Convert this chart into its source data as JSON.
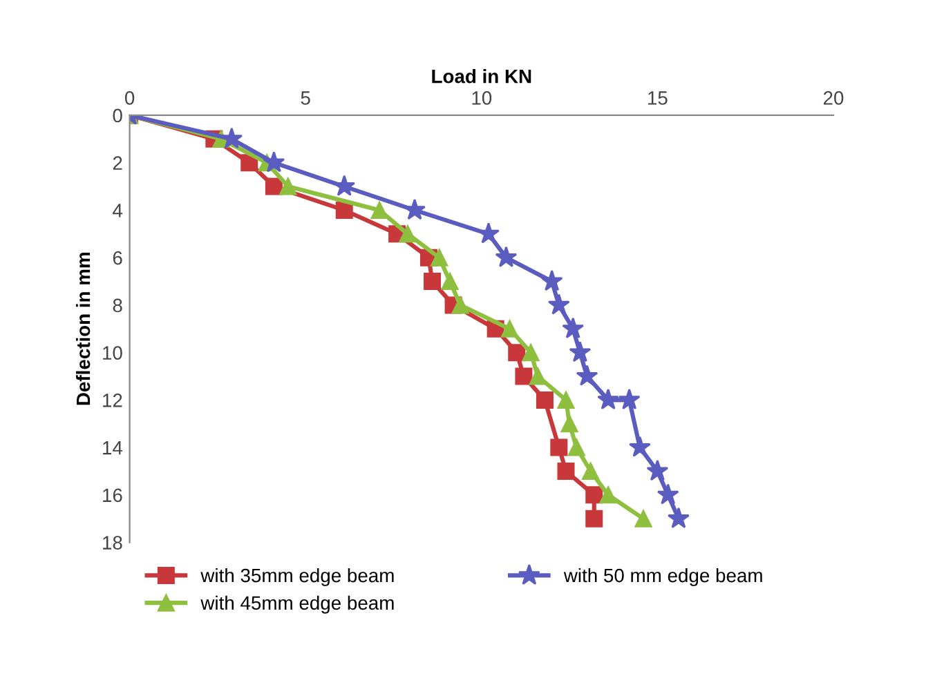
{
  "chart_data": {
    "type": "line",
    "xlabel": "Load in KN",
    "ylabel": "Deflection in mm",
    "xlim": [
      0,
      20
    ],
    "xticks": [
      0,
      5,
      10,
      15,
      20
    ],
    "ylim": [
      18,
      0
    ],
    "yticks": [
      0,
      2,
      4,
      6,
      8,
      10,
      12,
      14,
      16,
      18
    ],
    "grid": false,
    "legend": "bottom",
    "line_style": "solid",
    "series": [
      {
        "name": "with 35mm edge beam",
        "color": "#c8383a",
        "marker": "square",
        "x": [
          0,
          2.4,
          3.4,
          4.1,
          6.1,
          7.6,
          8.5,
          8.6,
          9.2,
          10.4,
          11.0,
          11.2,
          11.8,
          12.2,
          12.4,
          13.2,
          13.2
        ],
        "values": [
          0,
          1,
          2,
          3,
          4,
          5,
          6,
          7,
          8,
          9,
          10,
          11,
          12,
          14,
          15,
          16,
          17
        ]
      },
      {
        "name": "with 45mm edge beam",
        "color": "#8fbf3f",
        "marker": "triangle",
        "x": [
          0,
          2.6,
          3.9,
          4.5,
          7.1,
          7.9,
          8.8,
          9.1,
          9.4,
          10.8,
          11.4,
          11.6,
          12.4,
          12.5,
          12.7,
          13.1,
          13.6,
          14.6
        ],
        "values": [
          0,
          1,
          2,
          3,
          4,
          5,
          6,
          7,
          8,
          9,
          10,
          11,
          12,
          13,
          14,
          15,
          16,
          17
        ]
      },
      {
        "name": "with 50 mm edge beam",
        "color": "#5b5cc0",
        "marker": "star",
        "x": [
          0,
          2.9,
          4.1,
          6.1,
          8.1,
          10.2,
          10.7,
          12.0,
          12.2,
          12.6,
          12.8,
          13.0,
          13.6,
          14.2,
          14.5,
          15.0,
          15.3,
          15.6
        ],
        "values": [
          0,
          1,
          2,
          3,
          4,
          5,
          6,
          7,
          8,
          9,
          10,
          11,
          12,
          12,
          14,
          15,
          16,
          17
        ]
      }
    ]
  }
}
